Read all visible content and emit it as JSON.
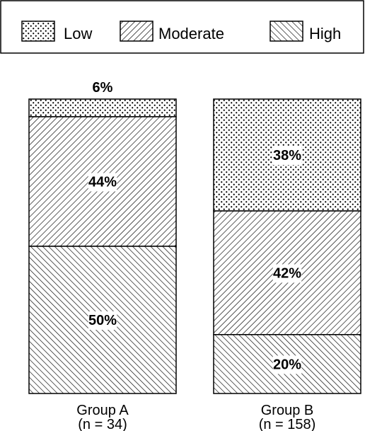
{
  "chart_data": {
    "type": "bar",
    "stacked": true,
    "normalized_to": 100,
    "unit": "%",
    "categories": [
      "Group A",
      "Group B"
    ],
    "category_sublabels": [
      "(n = 34)",
      "(n = 158)"
    ],
    "series": [
      {
        "name": "Low",
        "values": [
          6,
          38
        ],
        "labels": [
          "6%",
          "38%"
        ],
        "pattern": "dots"
      },
      {
        "name": "Moderate",
        "values": [
          44,
          42
        ],
        "labels": [
          "44%",
          "42%"
        ],
        "pattern": "hatch-forward"
      },
      {
        "name": "High",
        "values": [
          50,
          20
        ],
        "labels": [
          "50%",
          "20%"
        ],
        "pattern": "hatch-back"
      }
    ],
    "stack_order_top_to_bottom": [
      "Low",
      "Moderate",
      "High"
    ],
    "legend": {
      "position": "top",
      "entries": [
        "Low",
        "Moderate",
        "High"
      ]
    },
    "title": "",
    "xlabel": "",
    "ylabel": "",
    "axes_visible": false,
    "grid": false,
    "colors": {
      "ink": "#000000",
      "background": "#ffffff"
    }
  }
}
